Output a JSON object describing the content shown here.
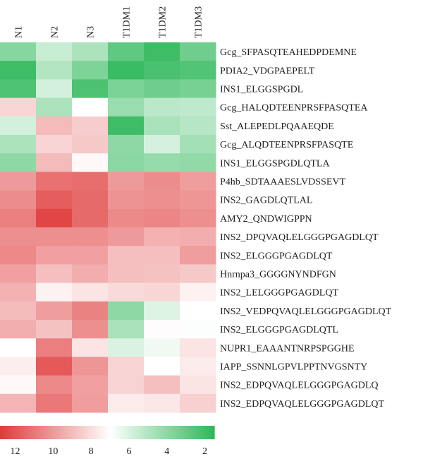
{
  "chart_data": {
    "type": "heatmap",
    "columns": [
      "N1",
      "N2",
      "N3",
      "T1DM1",
      "T1DM2",
      "T1DM3"
    ],
    "rows": [
      "Gcg_SFPASQTEAHEDPDEMNE",
      "PDIA2_VDGPAEPELT",
      "INS1_ELGGSPGDL",
      "Gcg_HALQDTEENPRSFPASQTEA",
      "Sst_ALEPEDLPQAAEQDE",
      "Gcg_ALQDTEENPRSFPASQTE",
      "INS1_ELGGSPGDLQTLA",
      "P4hb_SDTAAAESLVDSSEVT",
      "INS2_GAGDLQTLAL",
      "AMY2_QNDWIGPPN",
      "INS2_DPQVAQLELGGGPGAGDLQT",
      "INS2_ELGGGPGAGDLQT",
      "Hnrnpa3_GGGGNYNDFGN",
      "INS2_LELGGGPGAGDLQT",
      "INS2_VEDPQVAQLELGGGPGAGDLQT",
      "INS2_ELGGGPGAGDLQTL",
      "NUPR1_EAAANTNRPSPGGHE",
      "IAPP_SSNNLGPVLPPTNVGSNTY",
      "INS2_EDPQVAQLELGGGPGAGDLQ",
      "INS2_EDPQVAQLELGGGPGAGDLQT"
    ],
    "values": [
      [
        3.8,
        5.5,
        4.8,
        2.8,
        1.9,
        3.2
      ],
      [
        1.9,
        5.0,
        3.6,
        1.8,
        2.2,
        2.4
      ],
      [
        2.3,
        5.8,
        2.3,
        3.5,
        3.2,
        3.4
      ],
      [
        8.2,
        4.8,
        7.0,
        4.3,
        5.2,
        5.3
      ],
      [
        5.8,
        9.0,
        8.5,
        1.9,
        4.7,
        5.1
      ],
      [
        4.8,
        8.3,
        8.6,
        4.0,
        5.9,
        4.6
      ],
      [
        4.0,
        9.0,
        7.2,
        3.9,
        4.2,
        4.1
      ],
      [
        10.0,
        11.2,
        11.3,
        10.0,
        10.4,
        9.9
      ],
      [
        10.4,
        11.8,
        11.4,
        10.2,
        10.3,
        10.1
      ],
      [
        10.8,
        12.5,
        11.4,
        10.5,
        10.6,
        10.3
      ],
      [
        10.3,
        10.3,
        10.3,
        10.0,
        9.3,
        9.4
      ],
      [
        10.5,
        9.8,
        9.8,
        8.9,
        8.9,
        9.9
      ],
      [
        9.8,
        8.9,
        9.4,
        8.9,
        8.8,
        8.6
      ],
      [
        9.3,
        7.4,
        7.8,
        8.1,
        8.2,
        7.4
      ],
      [
        9.0,
        9.9,
        10.7,
        4.0,
        6.1,
        7.0
      ],
      [
        9.4,
        8.8,
        10.3,
        4.7,
        7.1,
        6.9
      ],
      [
        7.0,
        10.8,
        7.8,
        6.0,
        6.6,
        7.8
      ],
      [
        7.5,
        11.9,
        10.1,
        8.3,
        7.0,
        7.6
      ],
      [
        7.2,
        10.5,
        9.8,
        8.3,
        8.9,
        7.8
      ],
      [
        9.2,
        11.0,
        9.9,
        7.6,
        7.7,
        8.4
      ]
    ],
    "colorscale": {
      "low_color": "#2fb85a",
      "mid_color": "#ffffff",
      "high_color": "#e03b3b",
      "min": 1.5,
      "mid": 7,
      "max": 12.8
    },
    "colorbar_ticks": [
      12,
      10,
      8,
      6,
      4,
      2
    ],
    "title": "",
    "xlabel": "",
    "ylabel": "",
    "legend": "bottom"
  }
}
